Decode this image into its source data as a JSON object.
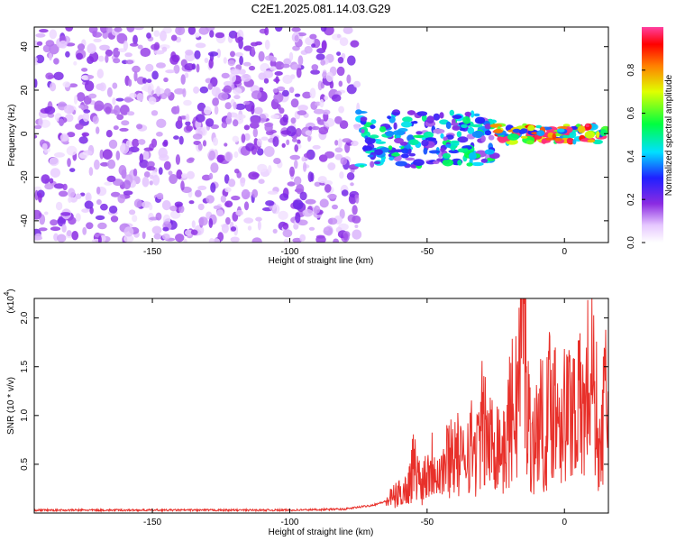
{
  "title": "C2E1.2025.081.14.03.G29",
  "top_panel": {
    "ylabel": "Frequency (Hz)",
    "xlabel": "Height of straight line (km)",
    "xticks": [
      "-150",
      "-100",
      "-50",
      "0"
    ],
    "yticks": [
      "-40",
      "-20",
      "0",
      "20",
      "40"
    ],
    "colorbar_label": "Normalized spectral amplitude",
    "colorbar_ticks": [
      "0.0",
      "0.2",
      "0.4",
      "0.6",
      "0.8"
    ]
  },
  "bottom_panel": {
    "ylabel": "SNR (10 * v/v)",
    "xlabel": "Height of straight line (km)",
    "yscale_label": "(x10",
    "yscale_exp": "4",
    "yscale_close": ")",
    "xticks": [
      "-150",
      "-100",
      "-50",
      "0"
    ],
    "yticks": [
      "0.5",
      "1.0",
      "1.5",
      "2.0"
    ]
  },
  "colors": {
    "snr_line": "#e8302a",
    "spectrogram_base": "#8b2be2"
  },
  "chart_data": [
    {
      "type": "heatmap",
      "xlabel": "Height of straight line (km)",
      "ylabel": "Frequency (Hz)",
      "xlim": [
        -193,
        16
      ],
      "ylim": [
        -50,
        49
      ],
      "colorbar": {
        "label": "Normalized spectral amplitude",
        "range": [
          0,
          1
        ],
        "colormap": "rainbow-to-white"
      },
      "regions": [
        {
          "x_range": [
            -193,
            -75
          ],
          "freq_range": [
            -50,
            49
          ],
          "amplitude": 0.05,
          "description_type": "noise"
        },
        {
          "x_range": [
            -75,
            -25
          ],
          "freq_range": [
            -15,
            10
          ],
          "amplitude": 0.4
        },
        {
          "x_range": [
            -25,
            15
          ],
          "freq_range": [
            -4,
            4
          ],
          "amplitude": 0.9
        }
      ]
    },
    {
      "type": "line",
      "xlabel": "Height of straight line (km)",
      "ylabel": "SNR (10 * v/v)",
      "y_multiplier": 10000,
      "xlim": [
        -193,
        16
      ],
      "ylim": [
        0,
        2.2
      ],
      "x": [
        -193,
        -150,
        -100,
        -80,
        -70,
        -65,
        -60,
        -57,
        -55,
        -52,
        -50,
        -47,
        -45,
        -42,
        -40,
        -37,
        -35,
        -32,
        -30,
        -27,
        -25,
        -22,
        -20,
        -17,
        -15,
        -13,
        -11,
        -9,
        -7,
        -5,
        -3,
        -1,
        1,
        3,
        5,
        7,
        9,
        11,
        13,
        15,
        16
      ],
      "y": [
        0.03,
        0.03,
        0.03,
        0.04,
        0.08,
        0.12,
        0.2,
        0.25,
        0.5,
        0.3,
        0.45,
        0.55,
        0.4,
        0.6,
        0.65,
        0.5,
        0.75,
        0.6,
        0.9,
        0.7,
        0.8,
        0.6,
        0.95,
        1.2,
        2.18,
        0.9,
        0.7,
        1.0,
        0.8,
        1.2,
        1.1,
        1.05,
        1.0,
        1.15,
        1.1,
        1.0,
        1.4,
        1.25,
        0.55,
        1.25,
        1.15
      ]
    }
  ]
}
